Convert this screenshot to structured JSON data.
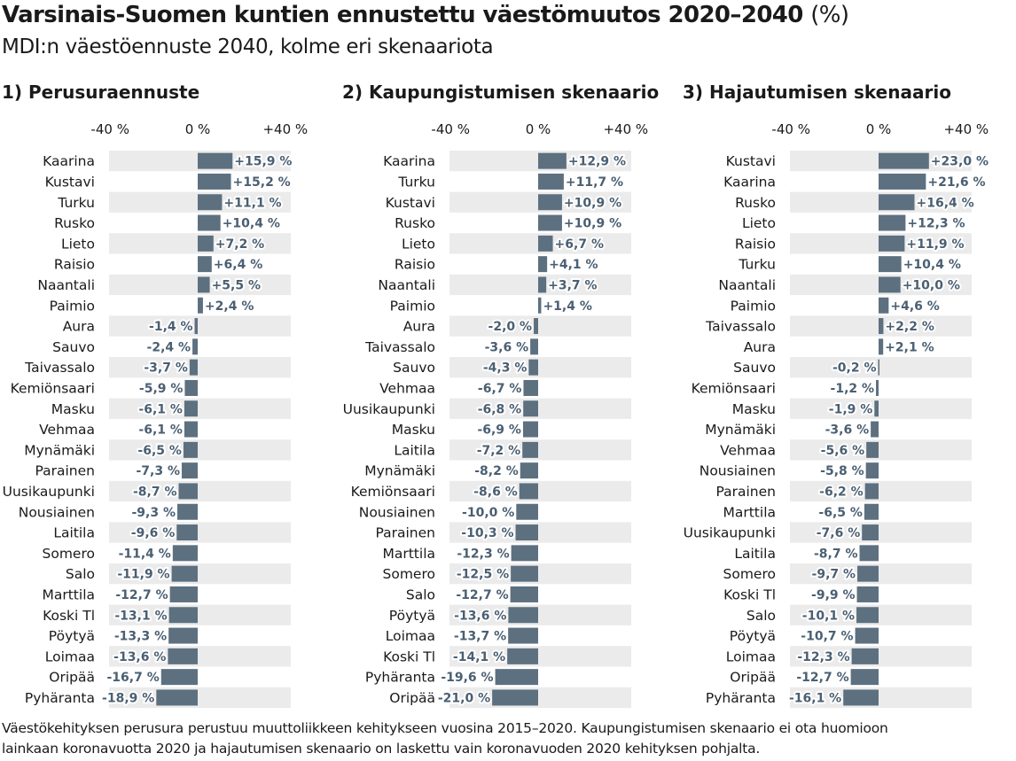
{
  "header": {
    "title": "Varsinais-Suomen kuntien ennustettu väestömuutos 2020–2040",
    "title_unit": "(%)",
    "subtitle": "MDI:n väestöennuste 2040, kolme eri skenaariota"
  },
  "footnote": {
    "line1": "Väestökehityksen perusura perustuu muuttoliikkeen kehitykseen vuosina 2015–2020. Kaupungistumisen skenaario ei ota huomioon",
    "line2": "lainkaan koronavuotta 2020 ja hajautumisen skenaario on laskettu vain koronavuoden 2020 kehityksen pohjalta."
  },
  "colors": {
    "bar": "#5d7080",
    "band": "#ebebeb",
    "label": "#4a5f72"
  },
  "chart_data": [
    {
      "type": "bar",
      "orientation": "horizontal",
      "title": "1) Perusuraennuste",
      "xlim": [
        -40,
        40
      ],
      "ticks": [
        -40,
        0,
        40
      ],
      "tick_labels": [
        "-40 %",
        "0 %",
        "+40 %"
      ],
      "categories": [
        "Kaarina",
        "Kustavi",
        "Turku",
        "Rusko",
        "Lieto",
        "Raisio",
        "Naantali",
        "Paimio",
        "Aura",
        "Sauvo",
        "Taivassalo",
        "Kemiönsaari",
        "Masku",
        "Vehmaa",
        "Mynämäki",
        "Parainen",
        "Uusikaupunki",
        "Nousiainen",
        "Laitila",
        "Somero",
        "Salo",
        "Marttila",
        "Koski Tl",
        "Pöytyä",
        "Loimaa",
        "Oripää",
        "Pyhäranta"
      ],
      "values": [
        15.9,
        15.2,
        11.1,
        10.4,
        7.2,
        6.4,
        5.5,
        2.4,
        -1.4,
        -2.4,
        -3.7,
        -5.9,
        -6.1,
        -6.1,
        -6.5,
        -7.3,
        -8.7,
        -9.3,
        -9.6,
        -11.4,
        -11.9,
        -12.7,
        -13.1,
        -13.3,
        -13.6,
        -16.7,
        -18.9
      ],
      "value_labels": [
        "+15,9 %",
        "+15,2 %",
        "+11,1 %",
        "+10,4 %",
        "+7,2 %",
        "+6,4 %",
        "+5,5 %",
        "+2,4 %",
        "-1,4 %",
        "-2,4 %",
        "-3,7 %",
        "-5,9 %",
        "-6,1 %",
        "-6,1 %",
        "-6,5 %",
        "-7,3 %",
        "-8,7 %",
        "-9,3 %",
        "-9,6 %",
        "-11,4 %",
        "-11,9 %",
        "-12,7 %",
        "-13,1 %",
        "-13,3 %",
        "-13,6 %",
        "-16,7 %",
        "-18,9 %"
      ]
    },
    {
      "type": "bar",
      "orientation": "horizontal",
      "title": "2) Kaupungistumisen skenaario",
      "xlim": [
        -40,
        40
      ],
      "ticks": [
        -40,
        0,
        40
      ],
      "tick_labels": [
        "-40 %",
        "0 %",
        "+40 %"
      ],
      "categories": [
        "Kaarina",
        "Turku",
        "Kustavi",
        "Rusko",
        "Lieto",
        "Raisio",
        "Naantali",
        "Paimio",
        "Aura",
        "Taivassalo",
        "Sauvo",
        "Vehmaa",
        "Uusikaupunki",
        "Masku",
        "Laitila",
        "Mynämäki",
        "Kemiönsaari",
        "Nousiainen",
        "Parainen",
        "Marttila",
        "Somero",
        "Salo",
        "Pöytyä",
        "Loimaa",
        "Koski Tl",
        "Pyhäranta",
        "Oripää"
      ],
      "values": [
        12.9,
        11.7,
        10.9,
        10.9,
        6.7,
        4.1,
        3.7,
        1.4,
        -2.0,
        -3.6,
        -4.3,
        -6.7,
        -6.8,
        -6.9,
        -7.2,
        -8.2,
        -8.6,
        -10.0,
        -10.3,
        -12.3,
        -12.5,
        -12.7,
        -13.6,
        -13.7,
        -14.1,
        -19.6,
        -21.0
      ],
      "value_labels": [
        "+12,9 %",
        "+11,7 %",
        "+10,9 %",
        "+10,9 %",
        "+6,7 %",
        "+4,1 %",
        "+3,7 %",
        "+1,4 %",
        "-2,0 %",
        "-3,6 %",
        "-4,3 %",
        "-6,7 %",
        "-6,8 %",
        "-6,9 %",
        "-7,2 %",
        "-8,2 %",
        "-8,6 %",
        "-10,0 %",
        "-10,3 %",
        "-12,3 %",
        "-12,5 %",
        "-12,7 %",
        "-13,6 %",
        "-13,7 %",
        "-14,1 %",
        "-19,6 %",
        "-21,0 %"
      ]
    },
    {
      "type": "bar",
      "orientation": "horizontal",
      "title": "3) Hajautumisen skenaario",
      "xlim": [
        -40,
        40
      ],
      "ticks": [
        -40,
        0,
        40
      ],
      "tick_labels": [
        "-40 %",
        "0 %",
        "+40 %"
      ],
      "categories": [
        "Kustavi",
        "Kaarina",
        "Rusko",
        "Lieto",
        "Raisio",
        "Turku",
        "Naantali",
        "Paimio",
        "Taivassalo",
        "Aura",
        "Sauvo",
        "Kemiönsaari",
        "Masku",
        "Mynämäki",
        "Vehmaa",
        "Nousiainen",
        "Parainen",
        "Marttila",
        "Uusikaupunki",
        "Laitila",
        "Somero",
        "Koski Tl",
        "Salo",
        "Pöytyä",
        "Loimaa",
        "Oripää",
        "Pyhäranta"
      ],
      "values": [
        23.0,
        21.6,
        16.4,
        12.3,
        11.9,
        10.4,
        10.0,
        4.6,
        2.2,
        2.1,
        -0.2,
        -1.2,
        -1.9,
        -3.6,
        -5.6,
        -5.8,
        -6.2,
        -6.5,
        -7.6,
        -8.7,
        -9.7,
        -9.9,
        -10.1,
        -10.7,
        -12.3,
        -12.7,
        -16.1
      ],
      "value_labels": [
        "+23,0 %",
        "+21,6 %",
        "+16,4 %",
        "+12,3 %",
        "+11,9 %",
        "+10,4 %",
        "+10,0 %",
        "+4,6 %",
        "+2,2 %",
        "+2,1 %",
        "-0,2 %",
        "-1,2 %",
        "-1,9 %",
        "-3,6 %",
        "-5,6 %",
        "-5,8 %",
        "-6,2 %",
        "-6,5 %",
        "-7,6 %",
        "-8,7 %",
        "-9,7 %",
        "-9,9 %",
        "-10,1 %",
        "-10,7 %",
        "-12,3 %",
        "-12,7 %",
        "-16,1 %"
      ]
    }
  ]
}
